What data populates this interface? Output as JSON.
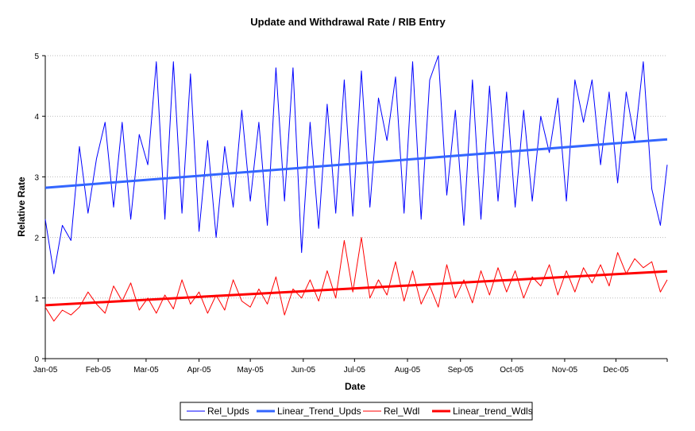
{
  "chart_data": {
    "type": "line",
    "title": "Update and Withdrawal Rate / RIB Entry",
    "xlabel": "Date",
    "ylabel": "Relative Rate",
    "ylim": [
      0,
      5
    ],
    "yticks": [
      "0",
      "1",
      "2",
      "3",
      "4",
      "5"
    ],
    "xticks": [
      "Jan-05",
      "Feb-05",
      "Mar-05",
      "Apr-05",
      "May-05",
      "Jun-05",
      "Jul-05",
      "Aug-05",
      "Sep-05",
      "Oct-05",
      "Nov-05",
      "Dec-05"
    ],
    "xlim": [
      "2005-01-01",
      "2005-12-31"
    ],
    "grid": "horizontal dotted",
    "legend_position": "bottom",
    "x": [
      "2005-01-01",
      "2005-01-06",
      "2005-01-11",
      "2005-01-16",
      "2005-01-21",
      "2005-01-26",
      "2005-01-31",
      "2005-02-05",
      "2005-02-10",
      "2005-02-15",
      "2005-02-20",
      "2005-02-25",
      "2005-03-02",
      "2005-03-07",
      "2005-03-12",
      "2005-03-17",
      "2005-03-22",
      "2005-03-27",
      "2005-04-01",
      "2005-04-06",
      "2005-04-11",
      "2005-04-16",
      "2005-04-21",
      "2005-04-26",
      "2005-05-01",
      "2005-05-06",
      "2005-05-11",
      "2005-05-16",
      "2005-05-21",
      "2005-05-26",
      "2005-05-31",
      "2005-06-05",
      "2005-06-10",
      "2005-06-15",
      "2005-06-20",
      "2005-06-25",
      "2005-06-30",
      "2005-07-05",
      "2005-07-10",
      "2005-07-15",
      "2005-07-20",
      "2005-07-25",
      "2005-07-30",
      "2005-08-04",
      "2005-08-09",
      "2005-08-14",
      "2005-08-19",
      "2005-08-24",
      "2005-08-29",
      "2005-09-03",
      "2005-09-08",
      "2005-09-13",
      "2005-09-18",
      "2005-09-23",
      "2005-09-28",
      "2005-10-03",
      "2005-10-08",
      "2005-10-13",
      "2005-10-18",
      "2005-10-23",
      "2005-10-28",
      "2005-11-02",
      "2005-11-07",
      "2005-11-12",
      "2005-11-17",
      "2005-11-22",
      "2005-11-27",
      "2005-12-02",
      "2005-12-07",
      "2005-12-12",
      "2005-12-17",
      "2005-12-22",
      "2005-12-27",
      "2005-12-31"
    ],
    "series": [
      {
        "name": "Rel_Upds",
        "color": "#0000ff",
        "width": 1,
        "values": [
          2.3,
          1.4,
          2.2,
          1.95,
          3.5,
          2.4,
          3.3,
          3.9,
          2.5,
          3.9,
          2.3,
          3.7,
          3.2,
          4.9,
          2.3,
          4.9,
          2.4,
          4.7,
          2.1,
          3.6,
          2.0,
          3.5,
          2.5,
          4.1,
          2.6,
          3.9,
          2.2,
          4.8,
          2.6,
          4.8,
          1.75,
          3.9,
          2.15,
          4.2,
          2.4,
          4.6,
          2.35,
          4.75,
          2.5,
          4.3,
          3.6,
          4.65,
          2.4,
          4.9,
          2.3,
          4.6,
          5.0,
          2.7,
          4.1,
          2.2,
          4.6,
          2.3,
          4.5,
          2.6,
          4.4,
          2.5,
          4.1,
          2.6,
          4.0,
          3.4,
          4.3,
          2.6,
          4.6,
          3.9,
          4.6,
          3.2,
          4.4,
          2.9,
          4.4,
          3.6,
          4.9,
          2.8,
          2.2,
          3.2
        ]
      },
      {
        "name": "Linear_Trend_Upds",
        "color": "#3366ff",
        "width": 3,
        "trend": [
          2.82,
          3.62
        ]
      },
      {
        "name": "Rel_Wdl",
        "color": "#ff0000",
        "width": 1,
        "values": [
          0.85,
          0.62,
          0.8,
          0.72,
          0.85,
          1.1,
          0.9,
          0.75,
          1.2,
          0.95,
          1.25,
          0.8,
          1.0,
          0.75,
          1.05,
          0.82,
          1.3,
          0.9,
          1.1,
          0.75,
          1.05,
          0.8,
          1.3,
          0.95,
          0.85,
          1.15,
          0.9,
          1.35,
          0.72,
          1.15,
          1.0,
          1.3,
          0.95,
          1.45,
          1.0,
          1.95,
          1.1,
          2.0,
          1.0,
          1.3,
          1.05,
          1.6,
          0.95,
          1.45,
          0.9,
          1.2,
          0.85,
          1.55,
          1.0,
          1.3,
          0.92,
          1.45,
          1.05,
          1.5,
          1.1,
          1.45,
          1.0,
          1.35,
          1.2,
          1.55,
          1.05,
          1.45,
          1.1,
          1.5,
          1.25,
          1.55,
          1.2,
          1.75,
          1.4,
          1.65,
          1.5,
          1.6,
          1.1,
          1.3
        ]
      },
      {
        "name": "Linear_trend_Wdls",
        "color": "#ff0000",
        "width": 3,
        "trend": [
          0.88,
          1.44
        ]
      }
    ]
  }
}
